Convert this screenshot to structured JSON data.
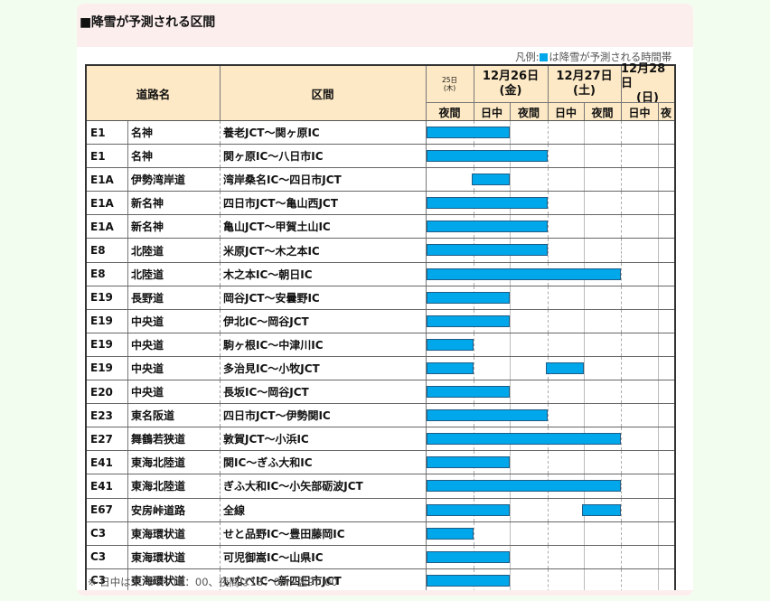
{
  "title": "■降雪が予測される区間",
  "legend": {
    "prefix": "凡例:",
    "suffix": "は降雪が予測される時間帯",
    "color": "#00a7ea"
  },
  "header": {
    "road_name": "道路名",
    "section": "区間",
    "days": [
      {
        "date": "25日",
        "weekday": "(木)",
        "small": true
      },
      {
        "date": "12月26日",
        "weekday": "(金)"
      },
      {
        "date": "12月27日",
        "weekday": "(土)"
      },
      {
        "date": "12月28日",
        "weekday": "(日)"
      }
    ],
    "slots": [
      "夜間",
      "日中",
      "夜間",
      "日中",
      "夜間",
      "日中",
      "夜"
    ]
  },
  "rows": [
    {
      "code": "E1",
      "road": "名神",
      "section": "養老JCT～関ヶ原IC",
      "bars": [
        [
          0,
          2
        ]
      ]
    },
    {
      "code": "E1",
      "road": "名神",
      "section": "関ヶ原IC～八日市IC",
      "bars": [
        [
          0,
          3
        ]
      ]
    },
    {
      "code": "E1A",
      "road": "伊勢湾岸道",
      "section": "湾岸桑名IC～四日市JCT",
      "bars": [
        [
          1,
          2
        ]
      ]
    },
    {
      "code": "E1A",
      "road": "新名神",
      "section": "四日市JCT～亀山西JCT",
      "bars": [
        [
          0,
          3
        ]
      ]
    },
    {
      "code": "E1A",
      "road": "新名神",
      "section": "亀山JCT～甲賀土山IC",
      "bars": [
        [
          0,
          3
        ]
      ]
    },
    {
      "code": "E8",
      "road": "北陸道",
      "section": "米原JCT～木之本IC",
      "bars": [
        [
          0,
          3
        ]
      ]
    },
    {
      "code": "E8",
      "road": "北陸道",
      "section": "木之本IC～朝日IC",
      "bars": [
        [
          0,
          5
        ]
      ]
    },
    {
      "code": "E19",
      "road": "長野道",
      "section": "岡谷JCT～安曇野IC",
      "bars": [
        [
          0,
          2
        ]
      ]
    },
    {
      "code": "E19",
      "road": "中央道",
      "section": "伊北IC～岡谷JCT",
      "bars": [
        [
          0,
          2
        ]
      ]
    },
    {
      "code": "E19",
      "road": "中央道",
      "section": "駒ヶ根IC～中津川IC",
      "bars": [
        [
          0,
          1
        ]
      ]
    },
    {
      "code": "E19",
      "road": "中央道",
      "section": "多治見IC～小牧JCT",
      "bars": [
        [
          0,
          1
        ],
        [
          3,
          4
        ]
      ]
    },
    {
      "code": "E20",
      "road": "中央道",
      "section": "長坂IC～岡谷JCT",
      "bars": [
        [
          0,
          2
        ]
      ]
    },
    {
      "code": "E23",
      "road": "東名阪道",
      "section": "四日市JCT～伊勢関IC",
      "bars": [
        [
          0,
          3
        ]
      ]
    },
    {
      "code": "E27",
      "road": "舞鶴若狭道",
      "section": "敦賀JCT～小浜IC",
      "bars": [
        [
          0,
          5
        ]
      ]
    },
    {
      "code": "E41",
      "road": "東海北陸道",
      "section": "関IC～ぎふ大和IC",
      "bars": [
        [
          0,
          2
        ]
      ]
    },
    {
      "code": "E41",
      "road": "東海北陸道",
      "section": "ぎふ大和IC～小矢部砺波JCT",
      "bars": [
        [
          0,
          5
        ]
      ]
    },
    {
      "code": "E67",
      "road": "安房峠道路",
      "section": "全線",
      "bars": [
        [
          0,
          2
        ],
        [
          4,
          5
        ]
      ]
    },
    {
      "code": "C3",
      "road": "東海環状道",
      "section": "せと品野IC～豊田藤岡IC",
      "bars": [
        [
          0,
          1
        ]
      ]
    },
    {
      "code": "C3",
      "road": "東海環状道",
      "section": "可児御嵩IC～山県IC",
      "bars": [
        [
          0,
          2
        ]
      ]
    },
    {
      "code": "C3",
      "road": "東海環状道",
      "section": "いなべIC～新四日市JCT",
      "bars": [
        [
          0,
          2
        ]
      ]
    }
  ],
  "note": "※ 日中は9：00～18：00、夜間は18：00～翌9：00"
}
